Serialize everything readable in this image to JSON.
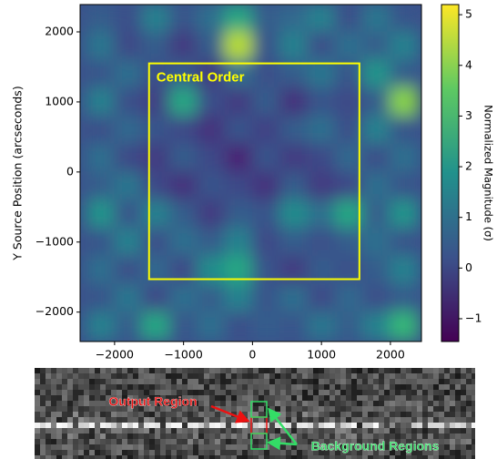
{
  "chart_data": [
    {
      "type": "heatmap",
      "xlabel": "X Source Position (arcseconds)",
      "ylabel": "Y Source Position (arcseconds)",
      "x": [
        -2200,
        -1800,
        -1400,
        -1000,
        -600,
        -200,
        200,
        600,
        1000,
        1400,
        1800,
        2200
      ],
      "y": [
        2200,
        1800,
        1400,
        1000,
        600,
        200,
        -200,
        -600,
        -1000,
        -1400,
        -1800,
        -2200
      ],
      "z": [
        [
          0.5,
          0.2,
          1.5,
          0.3,
          1.0,
          2.5,
          0.5,
          0.8,
          1.5,
          0.2,
          1.2,
          0.3
        ],
        [
          1.2,
          0.0,
          0.5,
          -0.3,
          0.5,
          4.5,
          0.3,
          1.5,
          0.2,
          1.0,
          0.5,
          1.5
        ],
        [
          0.3,
          1.0,
          0.2,
          0.5,
          -0.3,
          1.0,
          0.2,
          0.5,
          1.2,
          0.3,
          2.0,
          0.5
        ],
        [
          1.5,
          0.2,
          -0.2,
          2.5,
          0.2,
          -0.3,
          0.5,
          -0.5,
          0.3,
          0.0,
          0.5,
          4.0
        ],
        [
          0.2,
          0.8,
          0.3,
          0.0,
          -0.5,
          0.3,
          -0.2,
          0.5,
          1.0,
          0.2,
          1.5,
          0.3
        ],
        [
          1.0,
          0.0,
          -0.3,
          0.5,
          0.0,
          -0.8,
          0.3,
          -0.3,
          0.0,
          0.8,
          0.2,
          1.0
        ],
        [
          0.5,
          1.2,
          0.0,
          -0.5,
          0.3,
          0.0,
          -0.5,
          0.5,
          -0.3,
          0.0,
          1.0,
          0.3
        ],
        [
          2.0,
          0.3,
          1.5,
          0.5,
          -0.3,
          0.5,
          0.3,
          1.8,
          1.0,
          2.5,
          0.5,
          2.0
        ],
        [
          0.3,
          1.5,
          0.2,
          1.0,
          0.5,
          1.5,
          0.0,
          0.5,
          0.2,
          0.5,
          1.0,
          0.3
        ],
        [
          1.0,
          0.2,
          0.8,
          0.0,
          1.8,
          2.5,
          0.3,
          -0.3,
          0.5,
          0.2,
          0.5,
          1.5
        ],
        [
          0.3,
          1.2,
          0.0,
          1.0,
          0.5,
          1.5,
          0.3,
          1.0,
          0.0,
          0.8,
          0.2,
          0.5
        ],
        [
          1.5,
          0.5,
          2.5,
          0.3,
          1.0,
          0.2,
          0.5,
          0.3,
          1.2,
          0.5,
          1.5,
          3.0
        ]
      ],
      "xlim": [
        -2500,
        2450
      ],
      "ylim": [
        -2420,
        2390
      ],
      "xticks": [
        {
          "value": -2000,
          "label": "−2000"
        },
        {
          "value": -1000,
          "label": "−1000"
        },
        0,
        1000,
        2000
      ],
      "yticks": [
        {
          "value": -2000,
          "label": "−2000"
        },
        {
          "value": -1000,
          "label": "−1000"
        },
        0,
        1000,
        2000
      ],
      "colormap": "viridis",
      "clim": [
        -1.45,
        5.2
      ],
      "colorbar_label": "Normalized Magnitude (σ)",
      "colorbar_ticks": [
        {
          "value": -1,
          "label": "−1"
        },
        0,
        1,
        2,
        3,
        4,
        5
      ],
      "annotation": {
        "text": "Central Order",
        "color": "#ffff00",
        "x": [
          -1500,
          1550
        ],
        "y": [
          -1530,
          1550
        ]
      }
    },
    {
      "type": "image",
      "labels": [
        {
          "text": "Output Region",
          "color": "#ee1111"
        },
        {
          "text": "Background Regions",
          "color": "#33dd66"
        }
      ]
    }
  ]
}
